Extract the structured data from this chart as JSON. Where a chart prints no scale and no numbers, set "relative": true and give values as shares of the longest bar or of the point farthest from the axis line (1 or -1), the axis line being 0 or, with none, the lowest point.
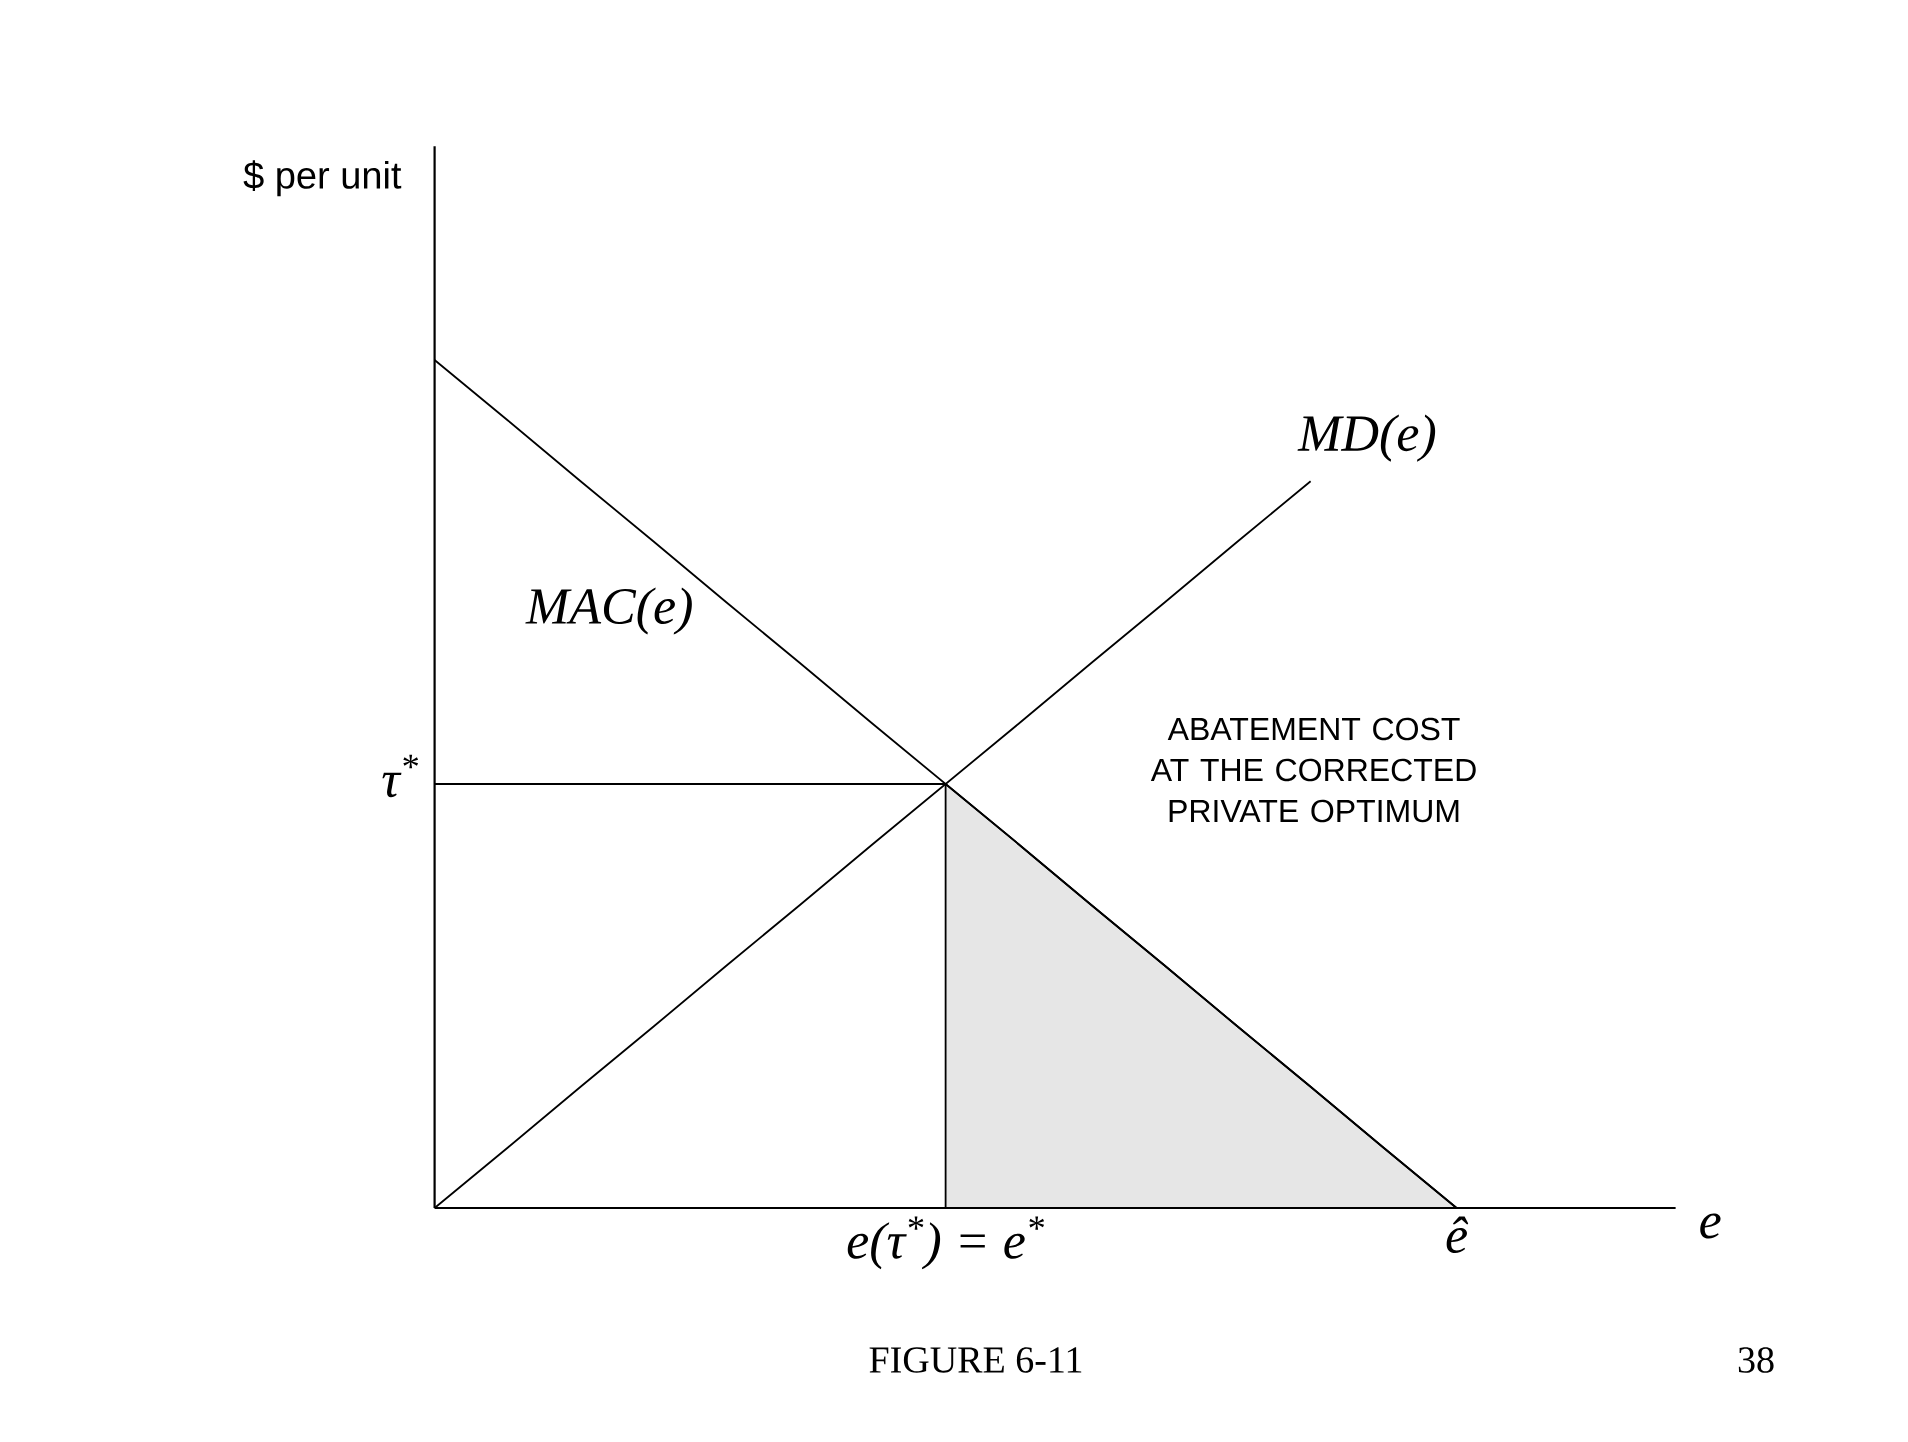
{
  "chart_data": {
    "type": "line",
    "relative": true,
    "xlabel": "e",
    "ylabel": "$ per unit",
    "categories": [
      null,
      null,
      null,
      null,
      null,
      null,
      null,
      "e(τ$^{*}$) = e$^{*}$",
      null,
      null,
      null,
      null,
      null,
      null,
      "ê",
      null,
      null,
      null
    ],
    "series": [
      {
        "type": "area",
        "color": "#e6e6e6",
        "values": [
          null,
          null,
          null,
          null,
          null,
          null,
          null,
          0.5,
          0.429,
          0.357,
          0.286,
          0.214,
          0.143,
          0.071,
          0,
          null,
          null,
          null
        ]
      },
      {
        "name": "MAC(e)",
        "color": "#000000",
        "values": [
          1,
          0.929,
          0.857,
          0.786,
          0.714,
          0.643,
          0.571,
          0.5,
          0.429,
          0.357,
          0.286,
          0.214,
          0.143,
          0.071,
          0,
          null,
          null,
          null
        ]
      },
      {
        "name": "MD(e)",
        "color": "#000000",
        "values": [
          0,
          0.071,
          0.143,
          0.214,
          0.286,
          0.357,
          0.429,
          0.5,
          0.571,
          0.643,
          0.714,
          0.786,
          0.857,
          null,
          null,
          null,
          null,
          null
        ]
      },
      {
        "name": "τ$^{*}$",
        "color": "#000000",
        "values": [
          0.5,
          0.5,
          0.5,
          0.5,
          0.5,
          0.5,
          0.5,
          0.5,
          null,
          null,
          null,
          null,
          null,
          null,
          null,
          null,
          null,
          null
        ]
      }
    ],
    "annotations": [
      "ABATEMENT COST AT THE CORRECTED PRIVATE OPTIMUM",
      "FIGURE 6-11",
      "38"
    ]
  }
}
